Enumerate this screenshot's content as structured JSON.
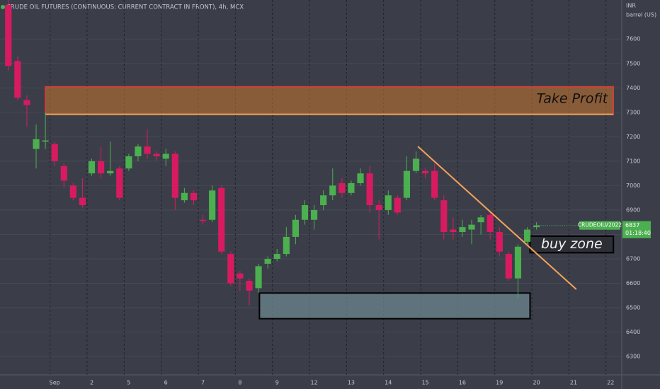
{
  "chart_data": {
    "type": "candlestick",
    "title": "CRUDE OIL FUTURES (CONTINUOUS: CURRENT CONTRACT IN FRONT), 4h, MCX",
    "currency": "INR",
    "unit": "barrel (US)",
    "x": [
      0,
      1,
      2,
      3,
      4,
      5,
      6,
      7,
      8,
      9,
      10,
      11,
      12,
      13,
      14,
      15,
      16,
      17,
      18,
      19,
      20,
      21,
      22,
      23,
      24,
      25,
      26,
      27,
      28,
      29,
      30,
      31,
      32,
      33,
      34,
      35,
      36,
      37,
      38,
      39,
      40,
      41,
      42,
      43,
      44,
      45,
      46,
      47,
      48,
      49,
      50,
      51,
      52,
      53,
      54,
      55,
      56,
      57
    ],
    "open": [
      7740,
      7510,
      7350,
      7150,
      7180,
      7170,
      7080,
      7000,
      6950,
      7050,
      7100,
      7050,
      7070,
      7070,
      7120,
      7160,
      7130,
      7110,
      7130,
      6940,
      6970,
      6860,
      6860,
      6990,
      6720,
      6640,
      6610,
      6580,
      6680,
      6700,
      6720,
      6790,
      6860,
      6860,
      6920,
      6960,
      7010,
      6970,
      7010,
      7050,
      6920,
      6900,
      6950,
      6950,
      7060,
      7060,
      7060,
      6940,
      6820,
      6810,
      6820,
      6850,
      6880,
      6810,
      6720,
      6620,
      6770,
      6830
    ],
    "high": [
      7760,
      7530,
      7370,
      7250,
      7300,
      7180,
      7090,
      7010,
      7030,
      7110,
      7160,
      7180,
      7080,
      7130,
      7170,
      7230,
      7140,
      7150,
      7140,
      6990,
      6980,
      6880,
      7000,
      7000,
      6730,
      6650,
      6620,
      6680,
      6710,
      6740,
      6830,
      6880,
      6940,
      6920,
      6980,
      7070,
      7030,
      7020,
      7070,
      7080,
      6940,
      6980,
      6960,
      7120,
      7140,
      7070,
      7090,
      6960,
      6870,
      6860,
      6860,
      6880,
      6890,
      6830,
      6730,
      6760,
      6830,
      6850
    ],
    "low": [
      7470,
      7350,
      7240,
      7070,
      7150,
      7080,
      6990,
      6940,
      6910,
      7040,
      7030,
      7040,
      6940,
      7060,
      7100,
      7110,
      7100,
      7080,
      6900,
      6930,
      6920,
      6840,
      6850,
      6720,
      6590,
      6570,
      6510,
      6560,
      6660,
      6690,
      6710,
      6760,
      6840,
      6820,
      6900,
      6940,
      6950,
      6960,
      7000,
      6890,
      6780,
      6880,
      6880,
      6940,
      7050,
      7030,
      6940,
      6780,
      6780,
      6790,
      6760,
      6800,
      6780,
      6710,
      6610,
      6540,
      6760,
      6820
    ],
    "close": [
      7490,
      7360,
      7330,
      7190,
      7185,
      7100,
      7020,
      6950,
      6920,
      7100,
      7050,
      7060,
      6950,
      7120,
      7160,
      7130,
      7120,
      7130,
      6950,
      6970,
      6940,
      6855,
      6980,
      6730,
      6600,
      6620,
      6570,
      6670,
      6700,
      6720,
      6790,
      6860,
      6920,
      6900,
      6960,
      7000,
      6970,
      7010,
      7050,
      6920,
      6900,
      6960,
      6890,
      7060,
      7110,
      7050,
      6950,
      6810,
      6810,
      6830,
      6840,
      6870,
      6810,
      6730,
      6620,
      6750,
      6820,
      6837
    ],
    "up_color": "#4caf50",
    "down_color": "#d81b60",
    "xlim": [
      -0.9,
      66.2
    ],
    "ylim": [
      6225,
      7760
    ],
    "xticks": [
      {
        "value": 5,
        "label": "Sep"
      },
      {
        "value": 9,
        "label": "2"
      },
      {
        "value": 13,
        "label": "5"
      },
      {
        "value": 17,
        "label": "6"
      },
      {
        "value": 21,
        "label": "7"
      },
      {
        "value": 25,
        "label": "8"
      },
      {
        "value": 29,
        "label": "9"
      },
      {
        "value": 33,
        "label": "12"
      },
      {
        "value": 37,
        "label": "13"
      },
      {
        "value": 41,
        "label": "14"
      },
      {
        "value": 45,
        "label": "15"
      },
      {
        "value": 49,
        "label": "16"
      },
      {
        "value": 53,
        "label": "19"
      },
      {
        "value": 57,
        "label": "20"
      },
      {
        "value": 61,
        "label": "21"
      },
      {
        "value": 65,
        "label": "22"
      }
    ],
    "yticks": [
      6300,
      6400,
      6500,
      6600,
      6700,
      6800,
      6900,
      7000,
      7100,
      7200,
      7300,
      7400,
      7500,
      7600
    ],
    "grid": true,
    "symbol_tag": "CRUDEOILV2022",
    "countdown": "01:18:40",
    "zones": [
      {
        "label": "Take Profit",
        "x_range": [
          4,
          65.3
        ],
        "y_range": [
          7292,
          7405
        ],
        "color": "#c8742c"
      },
      {
        "x_range": [
          27.1,
          56.3
        ],
        "y_range": [
          6455,
          6560
        ],
        "color": "#6f8a93"
      },
      {
        "label": "buy zone",
        "x_range": [
          56.3,
          65.3
        ],
        "y_range": [
          6725,
          6793
        ],
        "color": "#2b2d33"
      }
    ],
    "trend_line": {
      "x": [
        44.2,
        61.3
      ],
      "y": [
        7160,
        6575
      ],
      "color": "#f5a35a"
    }
  }
}
